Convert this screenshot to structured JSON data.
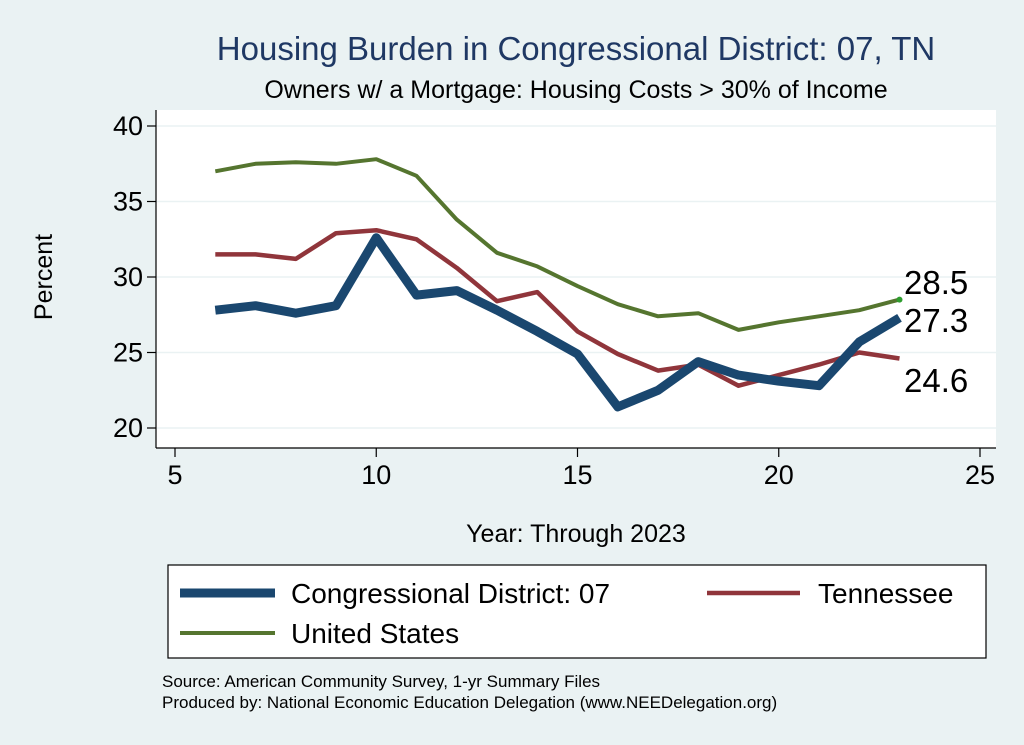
{
  "chart_data": {
    "type": "line",
    "title": "Housing Burden in Congressional District:  07, TN",
    "subtitle": "Owners w/ a Mortgage: Housing Costs > 30% of Income",
    "xlabel": "Year: Through 2023",
    "ylabel": "Percent",
    "xlim": [
      5,
      25
    ],
    "ylim": [
      20,
      40
    ],
    "xticks": [
      "5",
      "10",
      "15",
      "20",
      "25"
    ],
    "yticks": [
      "20",
      "25",
      "30",
      "35",
      "40"
    ],
    "grid": true,
    "legend_position": "bottom",
    "x": [
      6,
      7,
      8,
      9,
      10,
      11,
      12,
      13,
      14,
      15,
      16,
      17,
      18,
      19,
      20,
      21,
      22,
      23
    ],
    "series": [
      {
        "name": "Congressional District:  07",
        "color": "#1a476f",
        "values": [
          27.8,
          28.1,
          27.6,
          28.1,
          32.6,
          28.8,
          29.1,
          27.8,
          26.4,
          24.9,
          21.4,
          22.5,
          24.4,
          23.5,
          23.1,
          22.8,
          25.7,
          27.3
        ],
        "end_label": "27.3"
      },
      {
        "name": "Tennessee",
        "color": "#90353b",
        "values": [
          31.5,
          31.5,
          31.2,
          32.9,
          33.1,
          32.5,
          30.6,
          28.4,
          29.0,
          26.4,
          24.9,
          23.8,
          24.2,
          22.8,
          23.5,
          24.2,
          25.0,
          24.6
        ],
        "end_label": "24.6"
      },
      {
        "name": "United States",
        "color": "#55752f",
        "values": [
          37.0,
          37.5,
          37.6,
          37.5,
          37.8,
          36.7,
          33.8,
          31.6,
          30.7,
          29.4,
          28.2,
          27.4,
          27.6,
          26.5,
          27.0,
          27.4,
          27.8,
          28.5
        ],
        "end_label": "28.5"
      }
    ]
  },
  "source_line": "Source: American Community Survey, 1-yr Summary Files",
  "produced_line": "Produced by: National Economic Education Delegation (www.NEEDelegation.org)"
}
